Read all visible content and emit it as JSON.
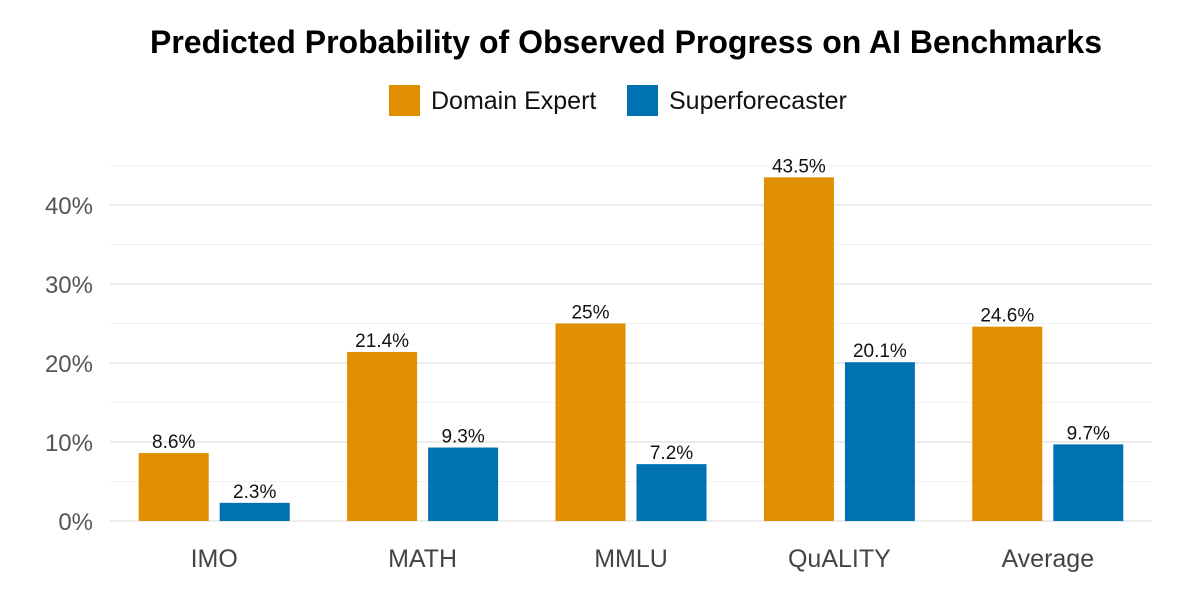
{
  "chart_data": {
    "type": "bar",
    "title": "Predicted Probability of Observed Progress on AI Benchmarks",
    "xlabel": "",
    "ylabel": "",
    "categories": [
      "IMO",
      "MATH",
      "MMLU",
      "QuALITY",
      "Average"
    ],
    "series": [
      {
        "name": "Domain Expert",
        "color": "#E08F00",
        "values": [
          8.6,
          21.4,
          25,
          43.5,
          24.6
        ],
        "labels": [
          "8.6%",
          "21.4%",
          "25%",
          "43.5%",
          "24.6%"
        ]
      },
      {
        "name": "Superforecaster",
        "color": "#0072B2",
        "values": [
          2.3,
          9.3,
          7.2,
          20.1,
          9.7
        ],
        "labels": [
          "2.3%",
          "9.3%",
          "7.2%",
          "20.1%",
          "9.7%"
        ]
      }
    ],
    "ylim": [
      0,
      46
    ],
    "yticks": [
      0,
      10,
      20,
      30,
      40
    ],
    "ytick_labels": [
      "0%",
      "10%",
      "20%",
      "30%",
      "40%"
    ],
    "grid": true,
    "legend_position": "top"
  }
}
